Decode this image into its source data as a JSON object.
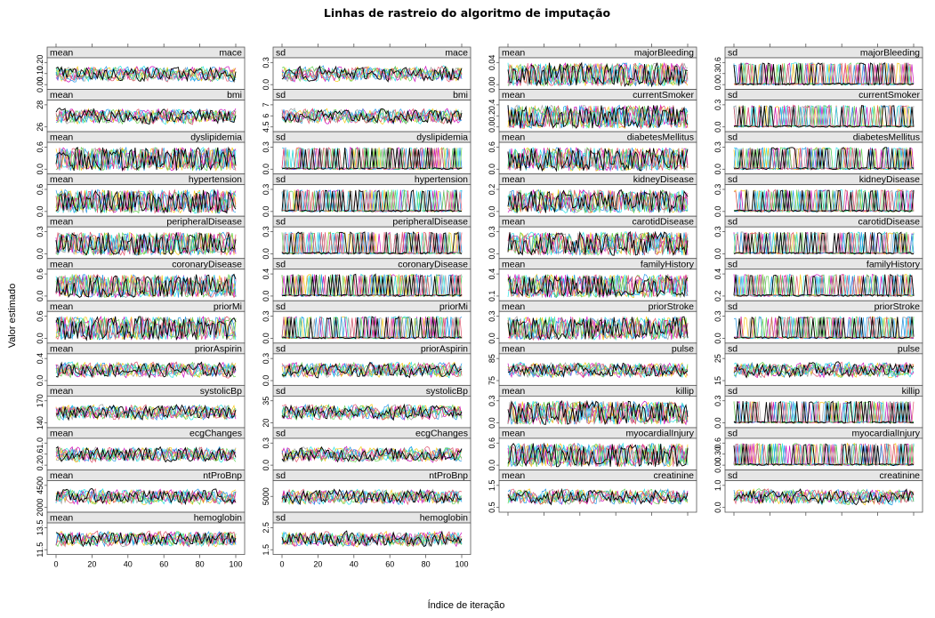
{
  "chart_data": {
    "type": "line",
    "title": "Linhas de rastreio do algoritmo de imputação",
    "xlabel": "Índice de iteração",
    "ylabel": "Valor estimado",
    "xlim": [
      0,
      100
    ],
    "x_ticks": [
      "0",
      "20",
      "40",
      "60",
      "80",
      "100"
    ],
    "grid": false,
    "series_colors": [
      "#000000",
      "#DF536B",
      "#61D04F",
      "#2297E6",
      "#28E2E5",
      "#CD0BBC",
      "#F5C710",
      "#9E9E9E"
    ],
    "panels": [
      {
        "stat": "mean",
        "variable": "mace",
        "yticks": [
          "0.00",
          "0.10",
          "0.20"
        ],
        "range": [
          0.0,
          0.2
        ]
      },
      {
        "stat": "sd",
        "variable": "mace",
        "yticks": [
          "0.0",
          "0.3"
        ],
        "range": [
          0.0,
          0.4
        ]
      },
      {
        "stat": "mean",
        "variable": "majorBleeding",
        "yticks": [
          "0.00",
          "0.04"
        ],
        "range": [
          0.0,
          0.05
        ]
      },
      {
        "stat": "sd",
        "variable": "majorBleeding",
        "yticks": [
          "0.0",
          "0.3",
          "0.6"
        ],
        "range": [
          0.0,
          0.6
        ]
      },
      {
        "stat": "mean",
        "variable": "bmi",
        "yticks": [
          "26",
          "28"
        ],
        "range": [
          26,
          28
        ]
      },
      {
        "stat": "sd",
        "variable": "bmi",
        "yticks": [
          "4.5",
          "6",
          "7"
        ],
        "range": [
          4.5,
          7
        ]
      },
      {
        "stat": "mean",
        "variable": "currentSmoker",
        "yticks": [
          "0.0",
          "0.2",
          "0.4"
        ],
        "range": [
          0.0,
          0.5
        ]
      },
      {
        "stat": "sd",
        "variable": "currentSmoker",
        "yticks": [
          "0.0",
          "0.3"
        ],
        "range": [
          0.0,
          0.5
        ]
      },
      {
        "stat": "mean",
        "variable": "dyslipidemia",
        "yticks": [
          "0.0",
          "0.6"
        ],
        "range": [
          0.0,
          0.8
        ]
      },
      {
        "stat": "sd",
        "variable": "dyslipidemia",
        "yticks": [
          "0.0",
          "0.3"
        ],
        "range": [
          0.0,
          0.5
        ]
      },
      {
        "stat": "mean",
        "variable": "diabetesMellitus",
        "yticks": [
          "0.0",
          "0.6"
        ],
        "range": [
          0.0,
          0.8
        ]
      },
      {
        "stat": "sd",
        "variable": "diabetesMellitus",
        "yticks": [
          "0.0",
          "0.3"
        ],
        "range": [
          0.0,
          0.5
        ]
      },
      {
        "stat": "mean",
        "variable": "hypertension",
        "yticks": [
          "0.0",
          "0.6"
        ],
        "range": [
          0.0,
          0.8
        ]
      },
      {
        "stat": "sd",
        "variable": "hypertension",
        "yticks": [
          "0.0",
          "0.3"
        ],
        "range": [
          0.0,
          0.5
        ]
      },
      {
        "stat": "mean",
        "variable": "kidneyDisease",
        "yticks": [
          "0.0",
          "0.2"
        ],
        "range": [
          0.0,
          0.3
        ]
      },
      {
        "stat": "sd",
        "variable": "kidneyDisease",
        "yticks": [
          "0.0",
          "0.3"
        ],
        "range": [
          0.0,
          0.5
        ]
      },
      {
        "stat": "mean",
        "variable": "peripheralDisease",
        "yticks": [
          "0.0",
          "0.3"
        ],
        "range": [
          0.0,
          0.4
        ]
      },
      {
        "stat": "sd",
        "variable": "peripheralDisease",
        "yticks": [
          "0.0",
          "0.3"
        ],
        "range": [
          0.0,
          0.5
        ]
      },
      {
        "stat": "mean",
        "variable": "carotidDisease",
        "yticks": [
          "0.0",
          "0.3"
        ],
        "range": [
          0.0,
          0.5
        ]
      },
      {
        "stat": "sd",
        "variable": "carotidDisease",
        "yticks": [
          "0.0",
          "0.3"
        ],
        "range": [
          0.0,
          0.5
        ]
      },
      {
        "stat": "mean",
        "variable": "coronaryDisease",
        "yticks": [
          "0.0",
          "0.6"
        ],
        "range": [
          0.0,
          0.8
        ]
      },
      {
        "stat": "sd",
        "variable": "coronaryDisease",
        "yticks": [
          "0.0",
          "0.4"
        ],
        "range": [
          0.0,
          0.5
        ]
      },
      {
        "stat": "mean",
        "variable": "familyHistory",
        "yticks": [
          "0.1",
          "0.4"
        ],
        "range": [
          0.1,
          0.5
        ]
      },
      {
        "stat": "sd",
        "variable": "familyHistory",
        "yticks": [
          "0.2",
          "0.4"
        ],
        "range": [
          0.2,
          0.5
        ]
      },
      {
        "stat": "mean",
        "variable": "priorMi",
        "yticks": [
          "0.0",
          "0.6"
        ],
        "range": [
          0.0,
          0.8
        ]
      },
      {
        "stat": "sd",
        "variable": "priorMi",
        "yticks": [
          "0.0",
          "0.3"
        ],
        "range": [
          0.0,
          0.5
        ]
      },
      {
        "stat": "mean",
        "variable": "priorStroke",
        "yticks": [
          "0.0",
          "0.3"
        ],
        "range": [
          0.0,
          0.4
        ]
      },
      {
        "stat": "sd",
        "variable": "priorStroke",
        "yticks": [
          "0.0",
          "0.3"
        ],
        "range": [
          0.0,
          0.5
        ]
      },
      {
        "stat": "mean",
        "variable": "priorAspirin",
        "yticks": [
          "0.0",
          "0.4"
        ],
        "range": [
          0.0,
          0.6
        ]
      },
      {
        "stat": "sd",
        "variable": "priorAspirin",
        "yticks": [
          "0.0",
          "0.3"
        ],
        "range": [
          0.0,
          0.5
        ]
      },
      {
        "stat": "mean",
        "variable": "pulse",
        "yticks": [
          "75",
          "85"
        ],
        "range": [
          75,
          88
        ]
      },
      {
        "stat": "sd",
        "variable": "pulse",
        "yticks": [
          "15",
          "25"
        ],
        "range": [
          13,
          27
        ]
      },
      {
        "stat": "mean",
        "variable": "systolicBp",
        "yticks": [
          "140",
          "170"
        ],
        "range": [
          135,
          175
        ]
      },
      {
        "stat": "sd",
        "variable": "systolicBp",
        "yticks": [
          "20",
          "35"
        ],
        "range": [
          18,
          40
        ]
      },
      {
        "stat": "mean",
        "variable": "killip",
        "yticks": [
          "0.0",
          "0.3"
        ],
        "range": [
          0.0,
          0.5
        ]
      },
      {
        "stat": "sd",
        "variable": "killip",
        "yticks": [
          "0.0",
          "0.3"
        ],
        "range": [
          0.0,
          0.5
        ]
      },
      {
        "stat": "mean",
        "variable": "ecgChanges",
        "yticks": [
          "0.2",
          "0.6",
          "1.0"
        ],
        "range": [
          0.1,
          1.0
        ]
      },
      {
        "stat": "sd",
        "variable": "ecgChanges",
        "yticks": [
          "0.0",
          "0.3"
        ],
        "range": [
          0.0,
          0.5
        ]
      },
      {
        "stat": "mean",
        "variable": "myocardialInjury",
        "yticks": [
          "0.0",
          "0.6"
        ],
        "range": [
          0.0,
          0.8
        ]
      },
      {
        "stat": "sd",
        "variable": "myocardialInjury",
        "yticks": [
          "0.00",
          "0.30",
          "0.6"
        ],
        "range": [
          0.0,
          0.6
        ]
      },
      {
        "stat": "mean",
        "variable": "ntProBnp",
        "yticks": [
          "2000",
          "4500"
        ],
        "range": [
          1500,
          5000
        ]
      },
      {
        "stat": "sd",
        "variable": "ntProBnp",
        "yticks": [
          "5000"
        ],
        "range": [
          3000,
          9000
        ]
      },
      {
        "stat": "mean",
        "variable": "creatinine",
        "yticks": [
          "0.5",
          "1.5"
        ],
        "range": [
          0.3,
          1.8
        ]
      },
      {
        "stat": "sd",
        "variable": "creatinine",
        "yticks": [
          "0.0",
          "1.0"
        ],
        "range": [
          0.0,
          1.5
        ]
      },
      {
        "stat": "mean",
        "variable": "hemoglobin",
        "yticks": [
          "11.5",
          "13.5"
        ],
        "range": [
          11,
          14
        ]
      },
      {
        "stat": "sd",
        "variable": "hemoglobin",
        "yticks": [
          "1.5",
          "2.5"
        ],
        "range": [
          1.2,
          2.8
        ]
      }
    ]
  }
}
